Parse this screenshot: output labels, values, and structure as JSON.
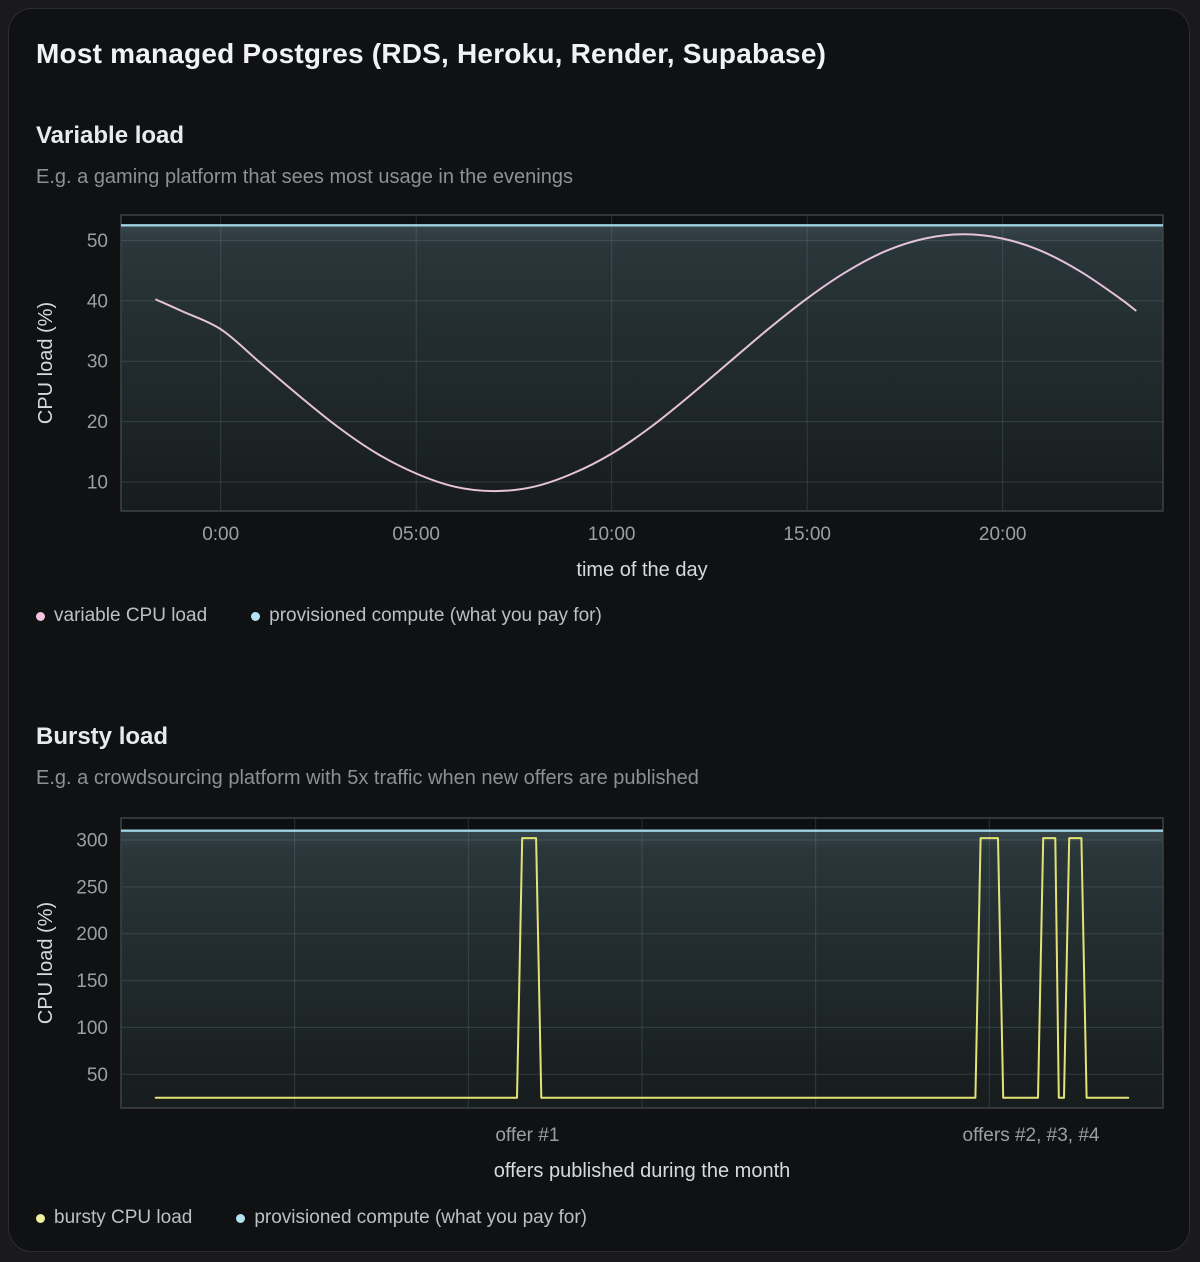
{
  "page": {
    "title": "Most managed Postgres (RDS, Heroku, Render, Supabase)"
  },
  "colors": {
    "card_background": "#101113",
    "plot_background": "#0d0f10",
    "plot_fill_top": "#37464b",
    "plot_fill_mid": "#29363a",
    "plot_fill_bottom": "#171c1d",
    "gridline": "rgba(138,160,166,0.22)",
    "plot_border": "#3c4347",
    "variable_line": "#e6c3d8",
    "provisioned_line": "#9ed3e3",
    "bursty_line": "#e3e375"
  },
  "sections": [
    {
      "heading": "Variable load",
      "subtitle": "E.g. a gaming platform that sees most usage in the evenings",
      "legend": [
        {
          "label": "variable CPU load",
          "color": "#f2c3df"
        },
        {
          "label": "provisioned compute (what you pay for)",
          "color": "#b3e2f0"
        }
      ],
      "chart_data": {
        "type": "line",
        "xlabel": "time of the day",
        "ylabel": "CPU load (%)",
        "xlim": [
          -2.55,
          24.1
        ],
        "ylim": [
          5.2,
          54.2
        ],
        "y_ticks": [
          10,
          20,
          30,
          40,
          50
        ],
        "x_ticks": [
          {
            "x": 0,
            "label": "0:00"
          },
          {
            "x": 5,
            "label": "05:00"
          },
          {
            "x": 10,
            "label": "10:00"
          },
          {
            "x": 15,
            "label": "15:00"
          },
          {
            "x": 20,
            "label": "20:00"
          }
        ],
        "x_gridlines": [
          0,
          5,
          10,
          15,
          20
        ],
        "grid": true,
        "legend_position": "bottom-left",
        "series": [
          {
            "name": "variable CPU load",
            "color": "#e6c3d8",
            "smooth": true,
            "points": [
              [
                -1.65,
                40.2
              ],
              [
                -1,
                38.3
              ],
              [
                0,
                35.3
              ],
              [
                1,
                29.8
              ],
              [
                2,
                24.3
              ],
              [
                3,
                19.1
              ],
              [
                4,
                14.7
              ],
              [
                5,
                11.4
              ],
              [
                6,
                9.2
              ],
              [
                7,
                8.5
              ],
              [
                8,
                9.2
              ],
              [
                9,
                11.4
              ],
              [
                10,
                14.7
              ],
              [
                11,
                19.1
              ],
              [
                12,
                24.3
              ],
              [
                13,
                29.8
              ],
              [
                14,
                35.3
              ],
              [
                15,
                40.4
              ],
              [
                16,
                44.8
              ],
              [
                17,
                48.2
              ],
              [
                18,
                50.3
              ],
              [
                19,
                51
              ],
              [
                20,
                50.3
              ],
              [
                21,
                48.2
              ],
              [
                22,
                44.8
              ],
              [
                23,
                40.4
              ],
              [
                23.4,
                38.4
              ]
            ]
          },
          {
            "name": "provisioned compute (what you pay for)",
            "color": "#9ed3e3",
            "constant": 52.5,
            "fill_below": true
          }
        ]
      }
    },
    {
      "heading": "Bursty load",
      "subtitle": "E.g. a crowdsourcing platform with 5x traffic when new offers are published",
      "legend": [
        {
          "label": "bursty CPU load",
          "color": "#efef9f"
        },
        {
          "label": "provisioned compute (what you pay for)",
          "color": "#b3e2f0"
        }
      ],
      "chart_data": {
        "type": "line",
        "xlabel": "offers published during the month",
        "ylabel": "CPU load (%)",
        "xlim": [
          0,
          30
        ],
        "ylim": [
          14,
          323.5
        ],
        "y_ticks": [
          50,
          100,
          150,
          200,
          250,
          300
        ],
        "x_ticks": [
          {
            "x": 11.7,
            "label": "offer #1"
          },
          {
            "x": 26.2,
            "label": "offers #2, #3, #4"
          }
        ],
        "x_gridlines": [
          5,
          10,
          15,
          20,
          25
        ],
        "grid": true,
        "legend_position": "bottom-left",
        "series": [
          {
            "name": "bursty CPU load",
            "color": "#e3e375",
            "smooth": false,
            "points": [
              [
                1,
                25
              ],
              [
                11.4,
                25
              ],
              [
                11.55,
                302
              ],
              [
                11.95,
                302
              ],
              [
                12.1,
                25
              ],
              [
                24.6,
                25
              ],
              [
                24.75,
                302
              ],
              [
                25.25,
                302
              ],
              [
                25.4,
                25
              ],
              [
                26.4,
                25
              ],
              [
                26.55,
                302
              ],
              [
                26.9,
                302
              ],
              [
                27.0,
                25
              ],
              [
                27.15,
                25
              ],
              [
                27.3,
                302
              ],
              [
                27.65,
                302
              ],
              [
                27.8,
                25
              ],
              [
                29,
                25
              ]
            ]
          },
          {
            "name": "provisioned compute (what you pay for)",
            "color": "#9ed3e3",
            "constant": 310,
            "fill_below": true
          }
        ]
      }
    }
  ]
}
